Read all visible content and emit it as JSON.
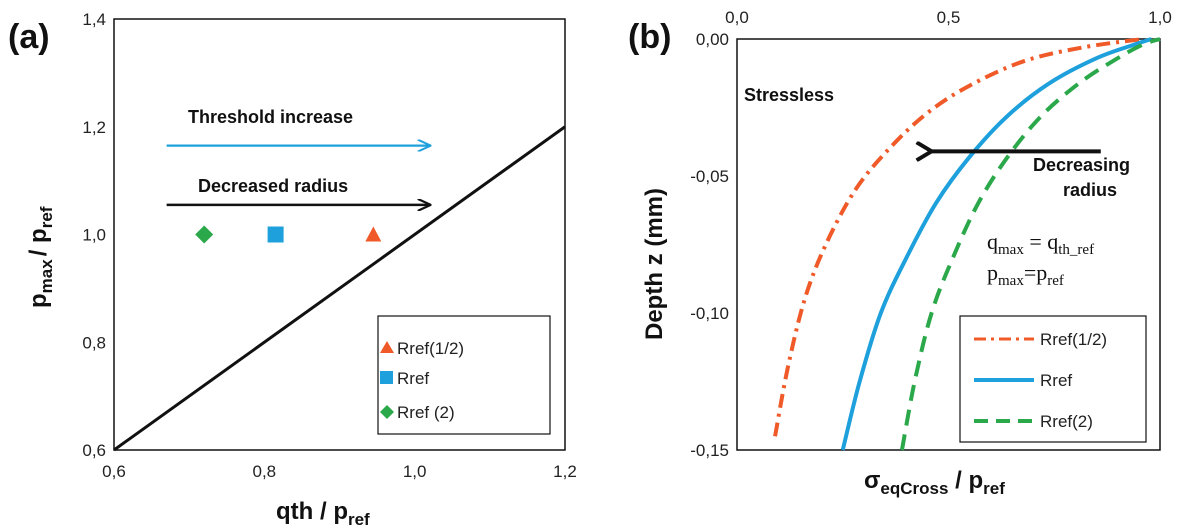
{
  "chart_data": [
    {
      "panel": "(a)",
      "type": "scatter",
      "xlabel": "qth / p",
      "xlabel_sub": "ref",
      "ylabel_main": "p",
      "ylabel_sub1": "max",
      "ylabel_mid": "/ p",
      "ylabel_sub2": "ref",
      "xlim": [
        0.6,
        1.2
      ],
      "ylim": [
        0.6,
        1.4
      ],
      "xticks": [
        "0,6",
        "0,8",
        "1,0",
        "1,2"
      ],
      "yticks": [
        "0,6",
        "0,8",
        "1,0",
        "1,2",
        "1,4"
      ],
      "series": [
        {
          "name": "Rref(1/2)",
          "marker": "triangle",
          "color": "#f05a28",
          "points": [
            [
              0.945,
              1.0
            ]
          ]
        },
        {
          "name": "Rref",
          "marker": "square",
          "color": "#1ea0dc",
          "points": [
            [
              0.815,
              1.0
            ]
          ]
        },
        {
          "name": "Rref (2)",
          "marker": "diamond",
          "color": "#2aa84a",
          "points": [
            [
              0.72,
              1.0
            ]
          ]
        }
      ],
      "line": {
        "x": [
          0.6,
          1.2
        ],
        "y": [
          0.6,
          1.2
        ],
        "color": "#111111"
      },
      "annotations": [
        {
          "text": "Threshold increase",
          "arrow_from": [
            0.67,
            1.165
          ],
          "arrow_to": [
            1.02,
            1.165
          ],
          "arrow_color": "#1ea0dc"
        },
        {
          "text": "Decreased  radius",
          "arrow_from": [
            0.67,
            1.055
          ],
          "arrow_to": [
            1.02,
            1.055
          ],
          "arrow_color": "#111111"
        }
      ],
      "legend_position": "bottom-right"
    },
    {
      "panel": "(b)",
      "type": "line",
      "xlabel_sigma": "σ",
      "xlabel_sub": "eqCross",
      "xlabel_mid": " / p",
      "xlabel_sub2": "ref",
      "ylabel": "Depth  z (mm)",
      "xlim": [
        0.0,
        1.0
      ],
      "ylim": [
        -0.15,
        0.0
      ],
      "xticks": [
        "0,0",
        "0,5",
        "1,0"
      ],
      "yticks": [
        "0,00",
        "-0,05",
        "-0,10",
        "-0,15"
      ],
      "series": [
        {
          "name": "Rref(1/2)",
          "style": "dashdot",
          "color": "#f05a28",
          "x": [
            0.09,
            0.12,
            0.16,
            0.21,
            0.28,
            0.36,
            0.45,
            0.55,
            0.68,
            0.82,
            0.96
          ],
          "y": [
            -0.145,
            -0.12,
            -0.095,
            -0.075,
            -0.055,
            -0.04,
            -0.027,
            -0.017,
            -0.008,
            -0.003,
            0.0
          ]
        },
        {
          "name": "Rref",
          "style": "solid",
          "color": "#1ea0dc",
          "x": [
            0.25,
            0.29,
            0.34,
            0.4,
            0.47,
            0.55,
            0.64,
            0.74,
            0.85,
            0.94,
            0.98
          ],
          "y": [
            -0.15,
            -0.125,
            -0.1,
            -0.08,
            -0.06,
            -0.043,
            -0.028,
            -0.016,
            -0.007,
            -0.002,
            0.0
          ]
        },
        {
          "name": "Rref(2)",
          "style": "dashed",
          "color": "#2aa84a",
          "x": [
            0.39,
            0.42,
            0.46,
            0.51,
            0.57,
            0.64,
            0.72,
            0.81,
            0.9,
            0.96,
            1.0
          ],
          "y": [
            -0.15,
            -0.125,
            -0.1,
            -0.08,
            -0.06,
            -0.043,
            -0.028,
            -0.016,
            -0.007,
            -0.002,
            0.0
          ]
        }
      ],
      "annotations": [
        {
          "text": "Stressless"
        },
        {
          "text_line1": "Decreasing",
          "text_line2": "radius",
          "arrow_from": [
            0.86,
            -0.041
          ],
          "arrow_to": [
            0.46,
            -0.041
          ],
          "arrow_color": "#111111"
        }
      ],
      "formula": {
        "line1_q": "q",
        "line1_q_sub": "max",
        "line1_eq": " = q",
        "line1_rhs_sub": "th_ref",
        "line2_p": "p",
        "line2_p_sub": "max",
        "line2_eq": "=p",
        "line2_rhs_sub": "ref"
      },
      "legend_position": "bottom-right"
    }
  ]
}
